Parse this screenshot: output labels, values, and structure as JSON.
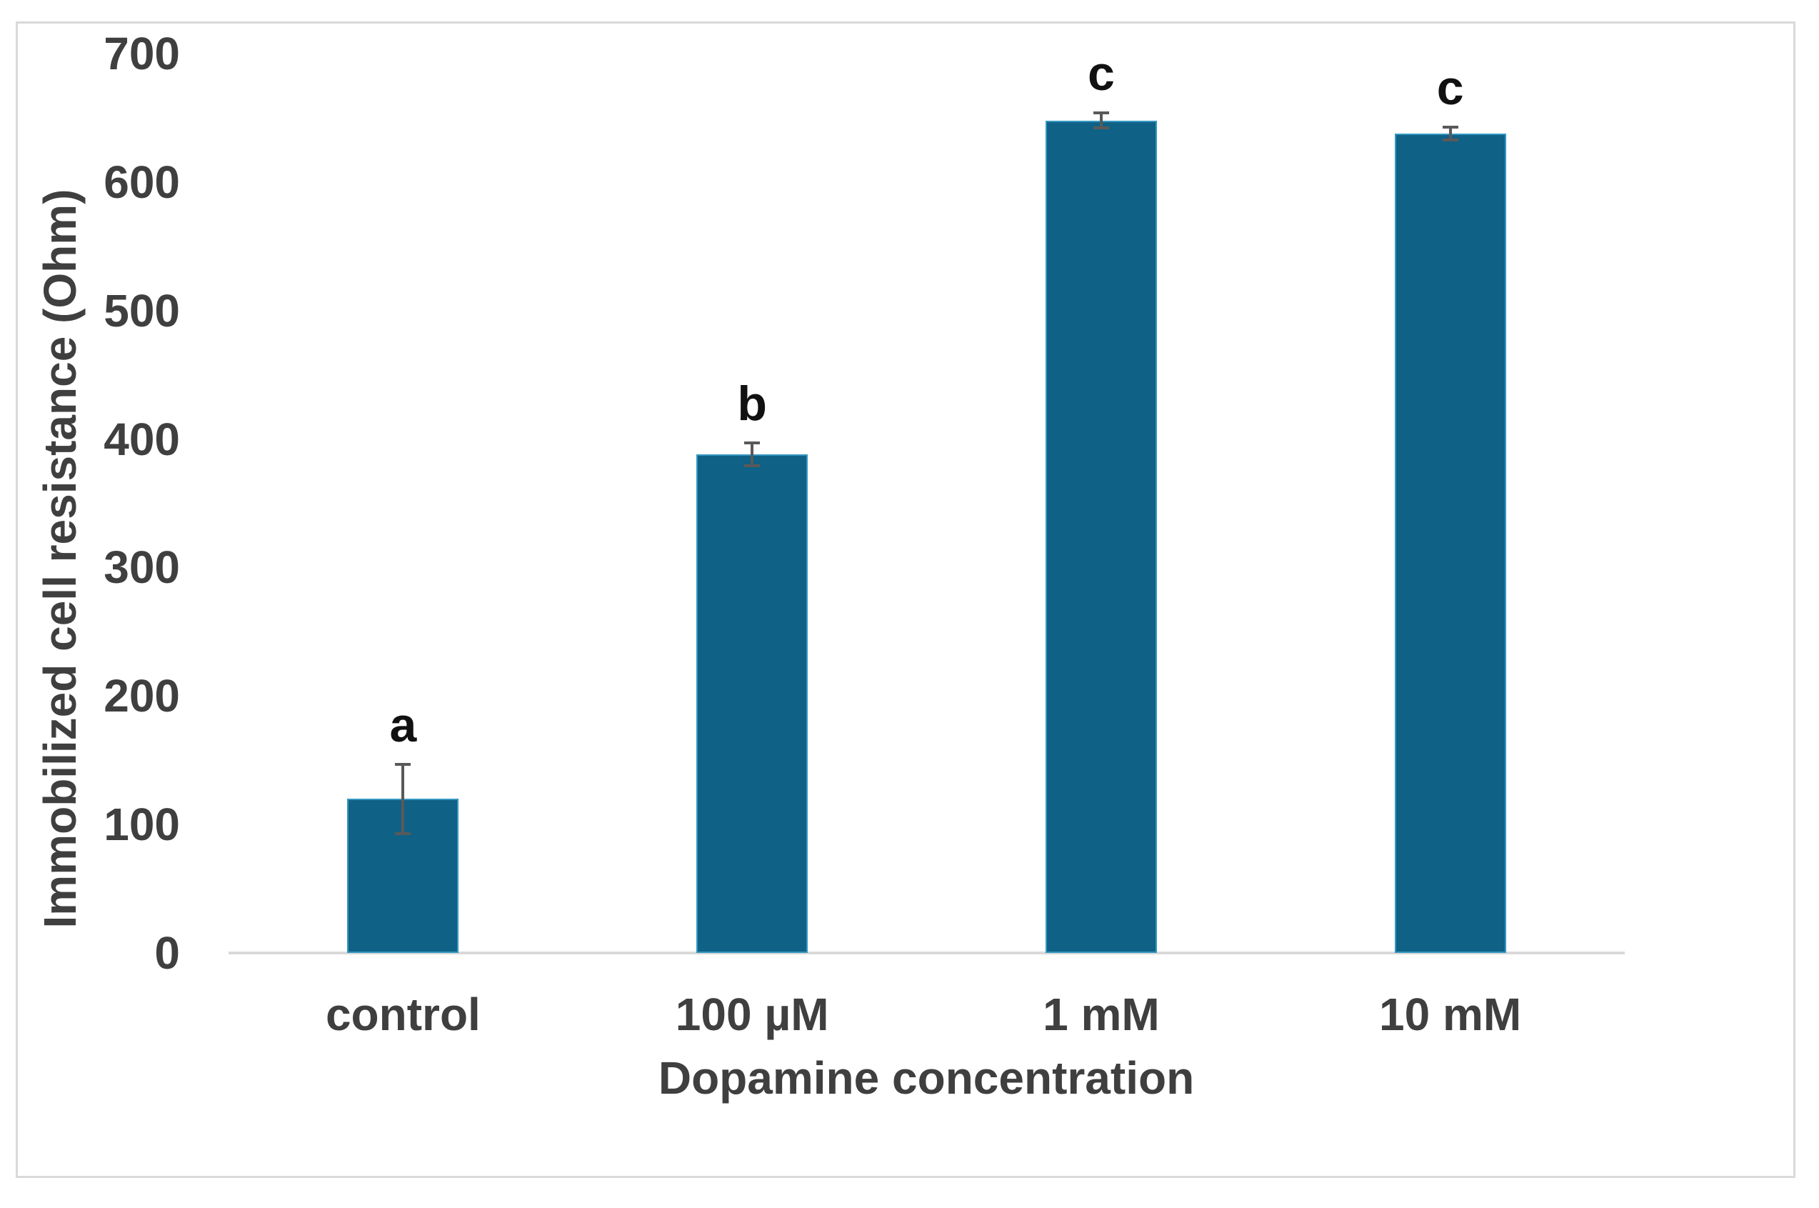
{
  "figure": {
    "background_color": "#ffffff",
    "frame_border_color": "#d9d9d9"
  },
  "chart_data": {
    "type": "bar",
    "title": "",
    "categories": [
      "control",
      "100 µM",
      "1 mM",
      "10 mM"
    ],
    "values": [
      120,
      388,
      648,
      638
    ],
    "error_bars_plus_minus": [
      27,
      9,
      6,
      5
    ],
    "significance_letters": [
      "a",
      "b",
      "c",
      "c"
    ],
    "xlabel": "Dopamine concentration",
    "ylabel": "Immobilized cell resistance (Ohm)",
    "ylim": [
      0,
      700
    ],
    "ytick_interval": 100,
    "ytick_labels": [
      "0",
      "100",
      "200",
      "300",
      "400",
      "500",
      "600",
      "700"
    ],
    "grid": false,
    "legend": "none",
    "bar_color": "#0f6186",
    "bar_border_color": "#3598c1",
    "error_bar_color": "#595959",
    "axis_line_color": "#d9d9d9",
    "tick_label_color": "#3f3f3f",
    "axis_title_color": "#3f3f3f",
    "letter_color": "#111111"
  }
}
